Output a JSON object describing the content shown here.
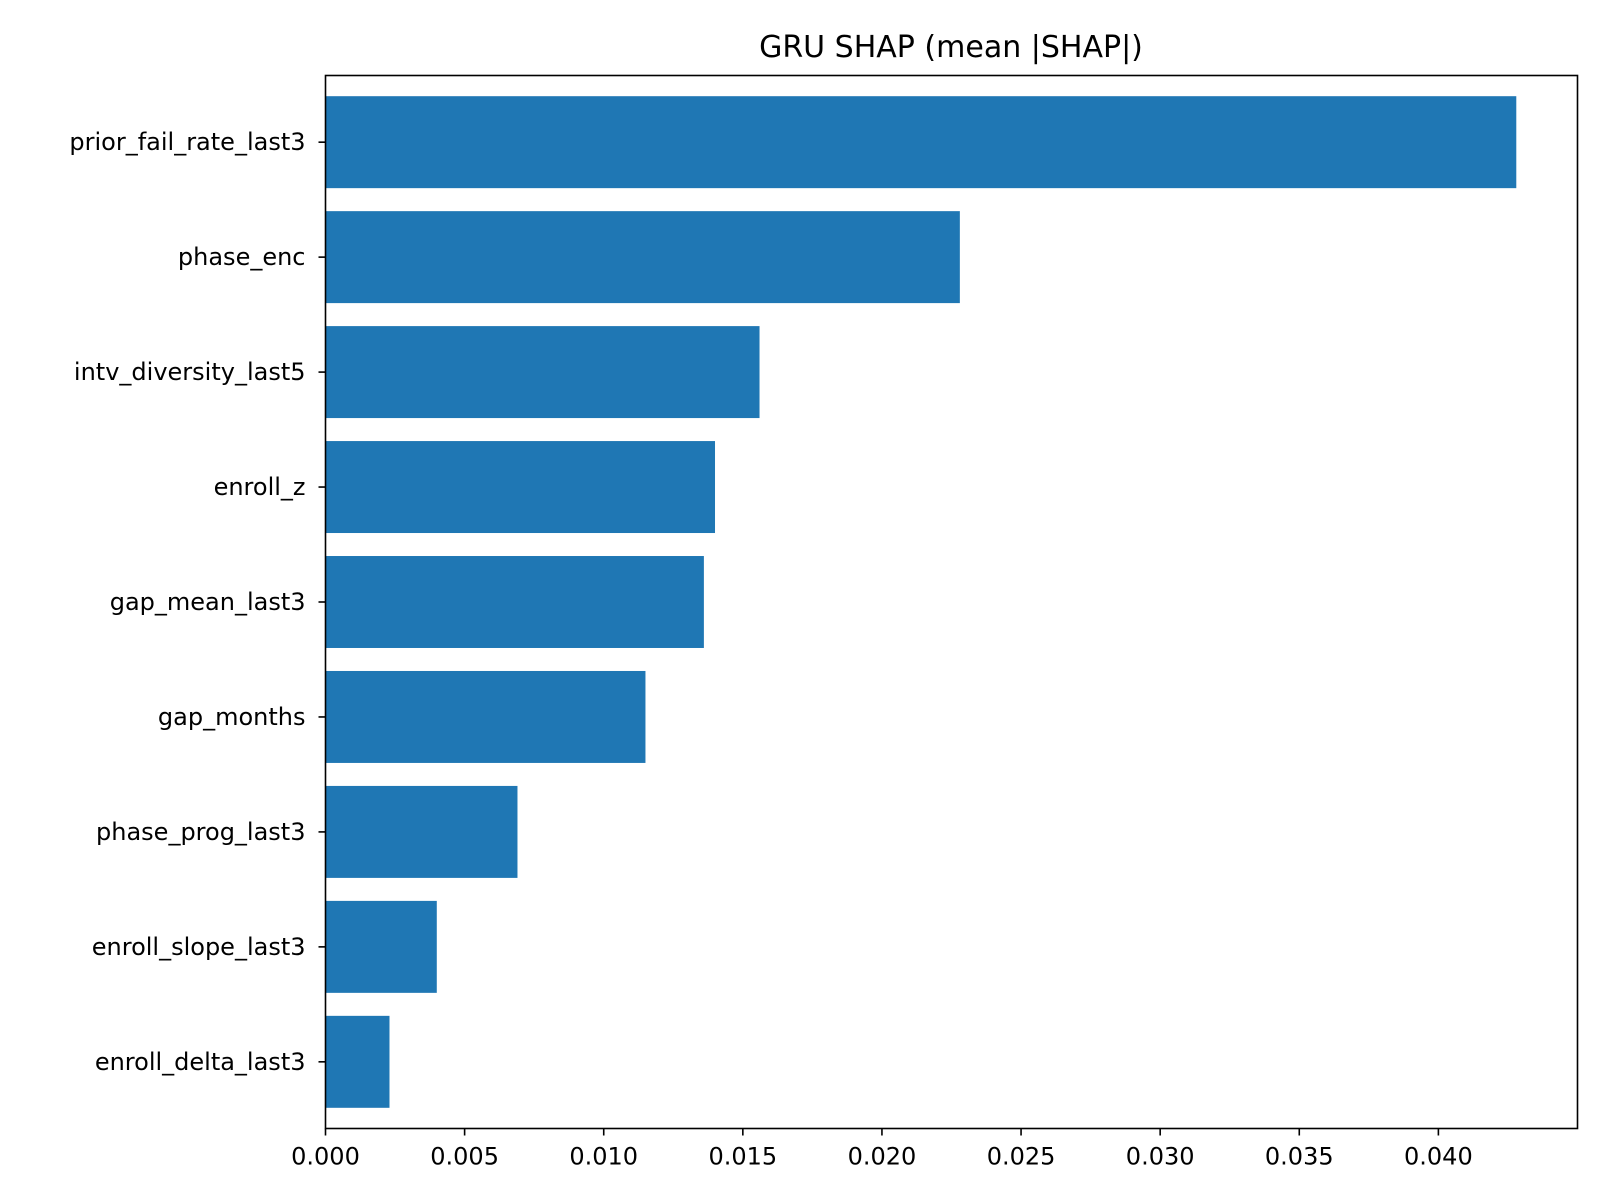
{
  "chart_data": {
    "type": "bar",
    "orientation": "horizontal",
    "title": "GRU SHAP (mean |SHAP|)",
    "xlabel": "",
    "ylabel": "",
    "categories": [
      "prior_fail_rate_last3",
      "phase_enc",
      "intv_diversity_last5",
      "enroll_z",
      "gap_mean_last3",
      "gap_months",
      "phase_prog_last3",
      "enroll_slope_last3",
      "enroll_delta_last3"
    ],
    "values": [
      0.0428,
      0.0228,
      0.0156,
      0.014,
      0.0136,
      0.0115,
      0.0069,
      0.004,
      0.0023
    ],
    "xlim": [
      0,
      0.045
    ],
    "xticks": [
      0.0,
      0.005,
      0.01,
      0.015,
      0.02,
      0.025,
      0.03,
      0.035,
      0.04
    ],
    "xtick_labels": [
      "0.000",
      "0.005",
      "0.010",
      "0.015",
      "0.020",
      "0.025",
      "0.030",
      "0.035",
      "0.040"
    ],
    "bar_color": "#1f77b4",
    "grid": false,
    "legend": "none"
  }
}
